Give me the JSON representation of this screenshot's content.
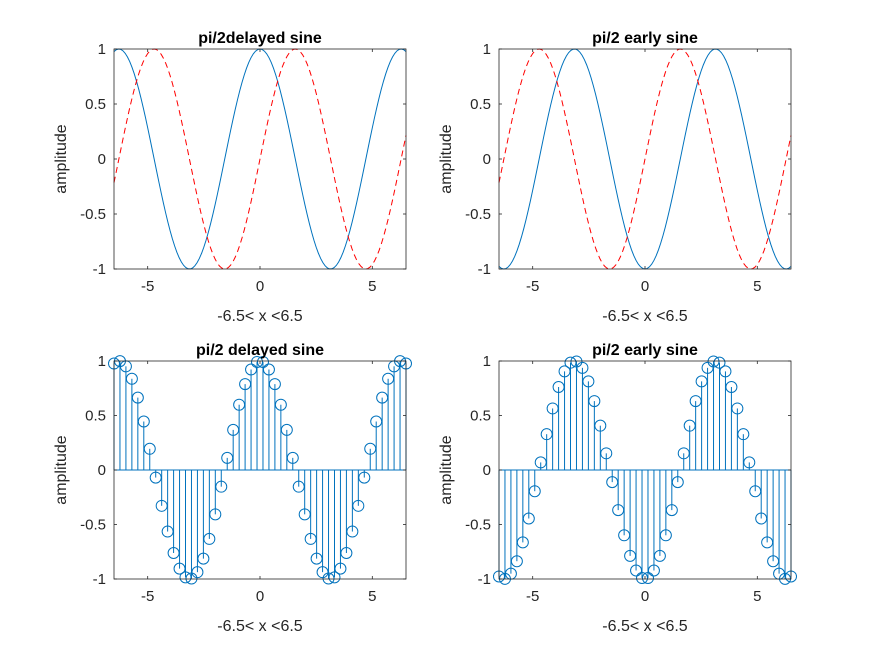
{
  "figure": {
    "background": "#ffffff",
    "axis_color": "#262626",
    "solid_color": "#0072bd",
    "dashed_color": "#ff0000"
  },
  "chart_data": [
    {
      "type": "line",
      "title": "pi/2delayed sine",
      "xlabel": "-6.5< x <6.5",
      "ylabel": "amplitude",
      "xlim": [
        -6.5,
        6.5
      ],
      "ylim": [
        -1,
        1
      ],
      "xticks": [
        -5,
        0,
        5
      ],
      "xtick_labels": [
        "-5",
        "0",
        "5"
      ],
      "yticks": [
        -1,
        -0.5,
        0,
        0.5,
        1
      ],
      "ytick_labels": [
        "-1",
        "-0.5",
        "0",
        "0.5",
        "1"
      ],
      "grid": false,
      "x": {
        "start": -6.5,
        "stop": 6.5,
        "count": 131
      },
      "series": [
        {
          "function": "cos(x)",
          "style": "solid",
          "color": "#0072bd"
        },
        {
          "function": "sin(x)",
          "style": "dashed",
          "color": "#ff0000"
        }
      ]
    },
    {
      "type": "line",
      "title": "pi/2 early sine",
      "xlabel": "-6.5< x <6.5",
      "ylabel": "amplitude",
      "xlim": [
        -6.5,
        6.5
      ],
      "ylim": [
        -1,
        1
      ],
      "xticks": [
        -5,
        0,
        5
      ],
      "xtick_labels": [
        "-5",
        "0",
        "5"
      ],
      "yticks": [
        -1,
        -0.5,
        0,
        0.5,
        1
      ],
      "ytick_labels": [
        "-1",
        "-0.5",
        "0",
        "0.5",
        "1"
      ],
      "grid": false,
      "x": {
        "start": -6.5,
        "stop": 6.5,
        "count": 131
      },
      "series": [
        {
          "function": "-cos(x)",
          "style": "solid",
          "color": "#0072bd"
        },
        {
          "function": "sin(x)",
          "style": "dashed",
          "color": "#ff0000"
        }
      ]
    },
    {
      "type": "stem",
      "title": "pi/2 delayed sine",
      "xlabel": "-6.5< x <6.5",
      "ylabel": "amplitude",
      "xlim": [
        -6.5,
        6.5
      ],
      "ylim": [
        -1,
        1
      ],
      "xticks": [
        -5,
        0,
        5
      ],
      "xtick_labels": [
        "-5",
        "0",
        "5"
      ],
      "yticks": [
        -1,
        -0.5,
        0,
        0.5,
        1
      ],
      "ytick_labels": [
        "-1",
        "-0.5",
        "0",
        "0.5",
        "1"
      ],
      "grid": false,
      "x": {
        "start": -6.5,
        "stop": 6.5,
        "count": 50
      },
      "series": [
        {
          "function": "cos(x)",
          "style": "stem",
          "marker": "circle",
          "color": "#0072bd"
        }
      ]
    },
    {
      "type": "stem",
      "title": "pi/2 early sine",
      "xlabel": "-6.5< x <6.5",
      "ylabel": "amplitude",
      "xlim": [
        -6.5,
        6.5
      ],
      "ylim": [
        -1,
        1
      ],
      "xticks": [
        -5,
        0,
        5
      ],
      "xtick_labels": [
        "-5",
        "0",
        "5"
      ],
      "yticks": [
        -1,
        -0.5,
        0,
        0.5,
        1
      ],
      "ytick_labels": [
        "-1",
        "-0.5",
        "0",
        "0.5",
        "1"
      ],
      "grid": false,
      "x": {
        "start": -6.5,
        "stop": 6.5,
        "count": 50
      },
      "series": [
        {
          "function": "-cos(x)",
          "style": "stem",
          "marker": "circle",
          "color": "#0072bd"
        }
      ]
    }
  ]
}
